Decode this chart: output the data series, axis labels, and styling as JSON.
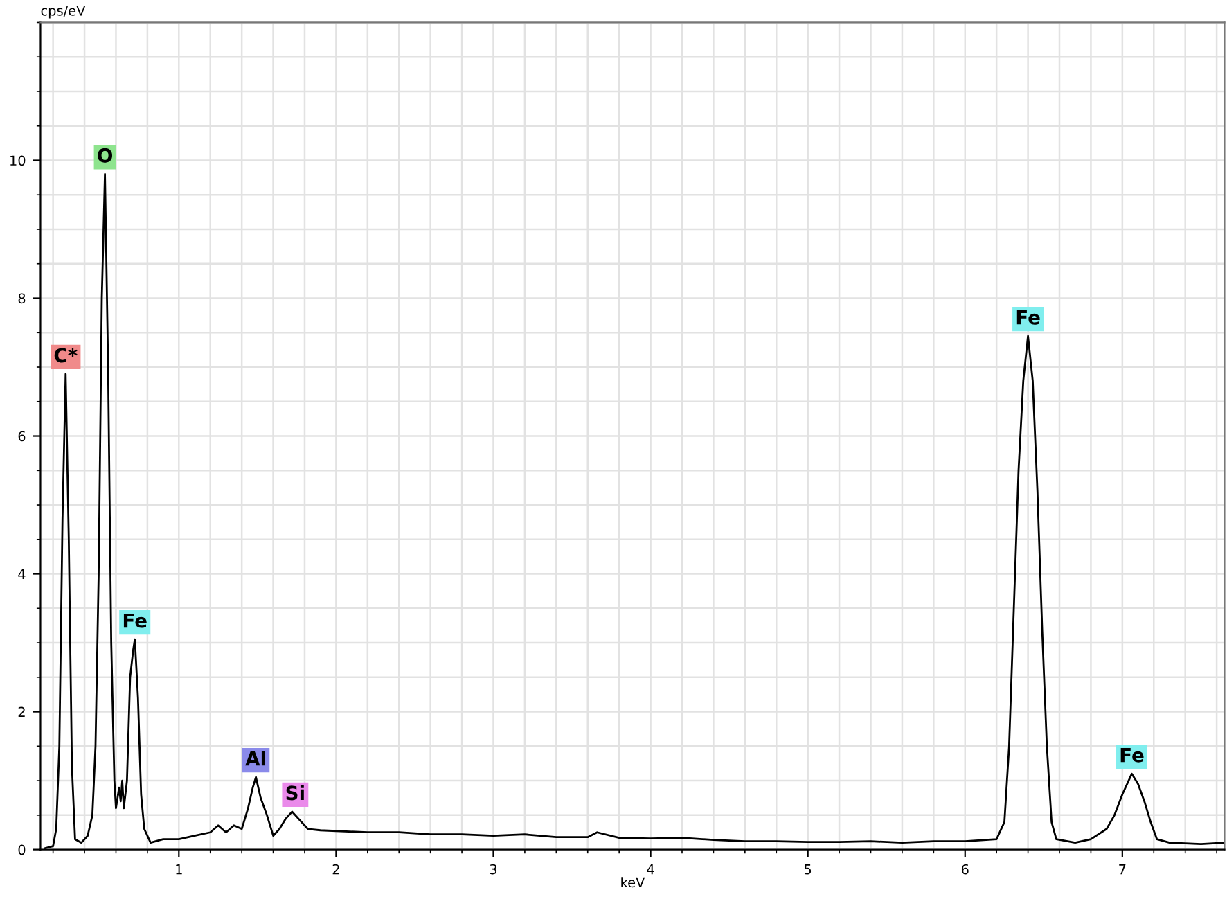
{
  "chart_data": {
    "type": "line",
    "ylabel": "cps/eV",
    "xlabel": "keV",
    "xlim": [
      0.12,
      7.65
    ],
    "ylim": [
      0,
      12
    ],
    "xticks": [
      1,
      2,
      3,
      4,
      5,
      6,
      7
    ],
    "yticks": [
      0,
      2,
      4,
      6,
      8,
      10
    ],
    "grid": true,
    "legend": false,
    "marker": "none",
    "line_style": "solid",
    "series": [
      {
        "color": "#000000",
        "x": [
          0.15,
          0.2,
          0.22,
          0.24,
          0.26,
          0.28,
          0.3,
          0.32,
          0.34,
          0.38,
          0.42,
          0.45,
          0.47,
          0.49,
          0.51,
          0.53,
          0.55,
          0.57,
          0.59,
          0.6,
          0.62,
          0.63,
          0.64,
          0.65,
          0.67,
          0.69,
          0.71,
          0.72,
          0.74,
          0.76,
          0.78,
          0.82,
          0.9,
          1.0,
          1.1,
          1.2,
          1.25,
          1.3,
          1.35,
          1.4,
          1.44,
          1.47,
          1.49,
          1.52,
          1.56,
          1.6,
          1.64,
          1.68,
          1.72,
          1.76,
          1.82,
          1.9,
          2.0,
          2.2,
          2.4,
          2.6,
          2.8,
          3.0,
          3.2,
          3.4,
          3.6,
          3.66,
          3.8,
          4.0,
          4.2,
          4.4,
          4.6,
          4.8,
          5.0,
          5.2,
          5.4,
          5.6,
          5.8,
          6.0,
          6.2,
          6.25,
          6.28,
          6.31,
          6.34,
          6.37,
          6.4,
          6.43,
          6.46,
          6.49,
          6.52,
          6.55,
          6.58,
          6.7,
          6.8,
          6.9,
          6.95,
          7.0,
          7.04,
          7.06,
          7.1,
          7.14,
          7.18,
          7.22,
          7.3,
          7.5,
          7.65
        ],
        "values": [
          0.02,
          0.05,
          0.3,
          1.5,
          4.8,
          6.9,
          4.5,
          1.2,
          0.15,
          0.1,
          0.2,
          0.5,
          1.5,
          4.0,
          8.0,
          9.8,
          7.0,
          3.0,
          1.0,
          0.6,
          0.9,
          0.7,
          1.0,
          0.6,
          1.0,
          2.5,
          2.9,
          3.05,
          2.2,
          0.8,
          0.3,
          0.1,
          0.15,
          0.15,
          0.2,
          0.25,
          0.35,
          0.25,
          0.35,
          0.3,
          0.6,
          0.9,
          1.05,
          0.75,
          0.5,
          0.2,
          0.3,
          0.45,
          0.55,
          0.45,
          0.3,
          0.28,
          0.27,
          0.25,
          0.25,
          0.22,
          0.22,
          0.2,
          0.22,
          0.18,
          0.18,
          0.25,
          0.17,
          0.16,
          0.17,
          0.14,
          0.12,
          0.12,
          0.11,
          0.11,
          0.12,
          0.1,
          0.12,
          0.12,
          0.15,
          0.4,
          1.5,
          3.5,
          5.5,
          6.8,
          7.45,
          6.8,
          5.2,
          3.2,
          1.5,
          0.4,
          0.15,
          0.1,
          0.15,
          0.3,
          0.5,
          0.8,
          1.0,
          1.1,
          0.95,
          0.7,
          0.4,
          0.15,
          0.1,
          0.08,
          0.1
        ]
      }
    ],
    "annotations": [
      {
        "text": "C*",
        "x": 0.28,
        "y": 6.9
      },
      {
        "text": "O",
        "x": 0.53,
        "y": 9.8
      },
      {
        "text": "Fe",
        "x": 0.72,
        "y": 3.05
      },
      {
        "text": "Al",
        "x": 1.49,
        "y": 1.05
      },
      {
        "text": "Si",
        "x": 1.74,
        "y": 0.55
      },
      {
        "text": "Fe",
        "x": 6.4,
        "y": 7.45
      },
      {
        "text": "Fe",
        "x": 7.06,
        "y": 1.1
      }
    ]
  }
}
